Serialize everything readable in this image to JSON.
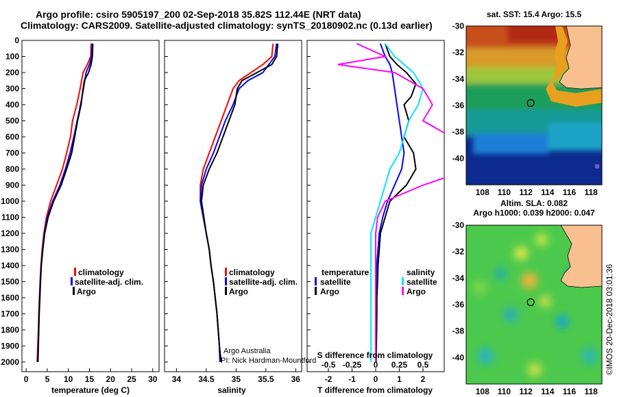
{
  "title_line1": "Argo profile: csiro 5905197_200 02-Sep-2018 35.82S 112.44E (NRT data)",
  "title_line2": "Climatology: CARS2009. Satellite-adjusted climatology: synTS_20180902.nc (0.13d earlier)",
  "colors": {
    "climatology": "#ff0000",
    "satellite": "#0000ff",
    "argo": "#000000",
    "s_satellite": "#00e5ff",
    "s_argo": "#ff00ff",
    "land": "#f7c08e"
  },
  "chart_data": [
    {
      "type": "line",
      "xlabel": "temperature (deg C)",
      "ylabel": "",
      "xlim": [
        -1,
        31.5
      ],
      "ylim": [
        2060,
        0
      ],
      "xticks": [
        "0",
        "5",
        "10",
        "15",
        "20",
        "25",
        "30"
      ],
      "yticks": [
        "0",
        "100",
        "200",
        "300",
        "400",
        "500",
        "600",
        "700",
        "800",
        "900",
        "1000",
        "1100",
        "1200",
        "1300",
        "1400",
        "1500",
        "1600",
        "1700",
        "1800",
        "1900",
        "2000"
      ],
      "legend": [
        "climatology",
        "satellite-adj. clim.",
        "Argo"
      ],
      "series": [
        {
          "name": "climatology",
          "points": [
            [
              15.4,
              20
            ],
            [
              15.3,
              100
            ],
            [
              14.5,
              150
            ],
            [
              13.5,
              200
            ],
            [
              12.8,
              300
            ],
            [
              12,
              400
            ],
            [
              11,
              500
            ],
            [
              10.5,
              600
            ],
            [
              9.6,
              700
            ],
            [
              8.6,
              800
            ],
            [
              7.2,
              900
            ],
            [
              5.8,
              1000
            ],
            [
              4.8,
              1100
            ],
            [
              4.2,
              1200
            ],
            [
              3.8,
              1300
            ],
            [
              3.5,
              1400
            ],
            [
              3.3,
              1500
            ],
            [
              3.15,
              1600
            ],
            [
              3,
              1700
            ],
            [
              2.9,
              1800
            ],
            [
              2.75,
              1900
            ],
            [
              2.6,
              2000
            ]
          ]
        },
        {
          "name": "satellite-adj. clim.",
          "points": [
            [
              15.6,
              20
            ],
            [
              15.5,
              100
            ],
            [
              15,
              150
            ],
            [
              14.2,
              200
            ],
            [
              13.6,
              300
            ],
            [
              12.9,
              400
            ],
            [
              12.1,
              500
            ],
            [
              11.3,
              600
            ],
            [
              10.4,
              700
            ],
            [
              9.3,
              800
            ],
            [
              8,
              900
            ],
            [
              6.3,
              1000
            ],
            [
              5,
              1100
            ],
            [
              4.3,
              1200
            ],
            [
              3.9,
              1300
            ],
            [
              3.55,
              1400
            ],
            [
              3.35,
              1500
            ],
            [
              3.2,
              1600
            ],
            [
              3.05,
              1700
            ],
            [
              2.95,
              1800
            ],
            [
              2.85,
              1900
            ],
            [
              2.7,
              2000
            ]
          ]
        },
        {
          "name": "Argo",
          "points": [
            [
              15.8,
              20
            ],
            [
              15.7,
              100
            ],
            [
              15.4,
              150
            ],
            [
              14.8,
              200
            ],
            [
              13.8,
              250
            ],
            [
              13.5,
              300
            ],
            [
              13,
              400
            ],
            [
              12.2,
              500
            ],
            [
              11.5,
              600
            ],
            [
              10.8,
              700
            ],
            [
              9.6,
              800
            ],
            [
              8.3,
              900
            ],
            [
              6.5,
              1000
            ],
            [
              5.2,
              1100
            ],
            [
              4.4,
              1200
            ],
            [
              3.95,
              1300
            ],
            [
              3.6,
              1400
            ],
            [
              3.4,
              1500
            ],
            [
              3.25,
              1600
            ],
            [
              3.1,
              1700
            ],
            [
              3,
              1800
            ],
            [
              2.9,
              1900
            ],
            [
              2.8,
              2000
            ]
          ]
        }
      ]
    },
    {
      "type": "line",
      "xlabel": "salinity",
      "ylabel": "",
      "xlim": [
        33.8,
        36.1
      ],
      "ylim": [
        2060,
        0
      ],
      "xticks": [
        "34",
        "34.5",
        "35",
        "35.5",
        "36"
      ],
      "legend": [
        "climatology",
        "satellite-adj. clim.",
        "Argo"
      ],
      "annotation": [
        "Argo Australia",
        "PI: Nick Hardman-Mountford"
      ],
      "series": [
        {
          "name": "climatology",
          "points": [
            [
              35.62,
              20
            ],
            [
              35.6,
              100
            ],
            [
              35.45,
              150
            ],
            [
              35.25,
              200
            ],
            [
              35.05,
              250
            ],
            [
              34.95,
              300
            ],
            [
              34.85,
              400
            ],
            [
              34.75,
              500
            ],
            [
              34.65,
              600
            ],
            [
              34.55,
              700
            ],
            [
              34.45,
              800
            ],
            [
              34.4,
              900
            ],
            [
              34.4,
              1000
            ],
            [
              34.45,
              1100
            ],
            [
              34.5,
              1200
            ],
            [
              34.55,
              1300
            ],
            [
              34.58,
              1400
            ],
            [
              34.62,
              1500
            ],
            [
              34.65,
              1600
            ],
            [
              34.68,
              1700
            ],
            [
              34.7,
              1800
            ],
            [
              34.72,
              1900
            ],
            [
              34.73,
              2000
            ]
          ]
        },
        {
          "name": "satellite-adj. clim.",
          "points": [
            [
              35.68,
              20
            ],
            [
              35.65,
              100
            ],
            [
              35.55,
              150
            ],
            [
              35.45,
              200
            ],
            [
              35.2,
              250
            ],
            [
              35.05,
              300
            ],
            [
              34.95,
              400
            ],
            [
              34.82,
              500
            ],
            [
              34.72,
              600
            ],
            [
              34.62,
              700
            ],
            [
              34.5,
              800
            ],
            [
              34.42,
              900
            ],
            [
              34.4,
              1000
            ],
            [
              34.45,
              1100
            ],
            [
              34.5,
              1200
            ],
            [
              34.55,
              1300
            ],
            [
              34.58,
              1400
            ],
            [
              34.62,
              1500
            ],
            [
              34.65,
              1600
            ],
            [
              34.68,
              1700
            ],
            [
              34.7,
              1800
            ],
            [
              34.72,
              1900
            ],
            [
              34.73,
              2000
            ]
          ]
        },
        {
          "name": "Argo",
          "points": [
            [
              35.7,
              20
            ],
            [
              35.68,
              100
            ],
            [
              35.6,
              150
            ],
            [
              35.35,
              200
            ],
            [
              35.1,
              250
            ],
            [
              35.02,
              300
            ],
            [
              34.98,
              400
            ],
            [
              34.88,
              500
            ],
            [
              34.78,
              600
            ],
            [
              34.68,
              700
            ],
            [
              34.55,
              800
            ],
            [
              34.45,
              900
            ],
            [
              34.42,
              1000
            ],
            [
              34.46,
              1100
            ],
            [
              34.5,
              1200
            ],
            [
              34.55,
              1300
            ],
            [
              34.58,
              1400
            ],
            [
              34.62,
              1500
            ],
            [
              34.65,
              1600
            ],
            [
              34.68,
              1700
            ],
            [
              34.7,
              1800
            ],
            [
              34.72,
              1900
            ],
            [
              34.75,
              2000
            ]
          ]
        }
      ]
    },
    {
      "type": "line",
      "xlabel": "T difference from climatology",
      "xlabel_top": "S difference from climatology",
      "ylabel": "",
      "xlim": [
        -2.9,
        2.9
      ],
      "ylim": [
        2060,
        0
      ],
      "xticks": [
        "-2",
        "-1",
        "0",
        "1",
        "2"
      ],
      "xticks_top": [
        "-0.5",
        "-0.25",
        "0",
        "0.25",
        "0.5"
      ],
      "legend": {
        "temperature": [
          "satellite",
          "Argo"
        ],
        "salinity": [
          "satellite",
          "Argo"
        ]
      },
      "series": [
        {
          "name": "temperature satellite",
          "points": [
            [
              0.2,
              20
            ],
            [
              0.4,
              100
            ],
            [
              0.6,
              150
            ],
            [
              0.7,
              200
            ],
            [
              0.8,
              300
            ],
            [
              0.9,
              400
            ],
            [
              1.0,
              500
            ],
            [
              1.1,
              600
            ],
            [
              1.2,
              700
            ],
            [
              1.1,
              800
            ],
            [
              0.8,
              900
            ],
            [
              0.5,
              1000
            ],
            [
              0.3,
              1100
            ],
            [
              0.15,
              1200
            ],
            [
              0.1,
              1300
            ],
            [
              0.05,
              1400
            ],
            [
              0.05,
              1500
            ],
            [
              0.03,
              1600
            ],
            [
              0.02,
              1700
            ],
            [
              0.02,
              1800
            ],
            [
              0.01,
              1900
            ],
            [
              0.01,
              2000
            ]
          ]
        },
        {
          "name": "temperature Argo",
          "points": [
            [
              0.4,
              20
            ],
            [
              0.6,
              100
            ],
            [
              0.9,
              150
            ],
            [
              1.3,
              200
            ],
            [
              1.7,
              270
            ],
            [
              1.5,
              350
            ],
            [
              1.2,
              400
            ],
            [
              1.4,
              500
            ],
            [
              1.2,
              600
            ],
            [
              1.6,
              700
            ],
            [
              1.7,
              800
            ],
            [
              1.3,
              900
            ],
            [
              0.6,
              1000
            ],
            [
              0.4,
              1100
            ],
            [
              0.2,
              1200
            ],
            [
              0.15,
              1300
            ],
            [
              0.1,
              1400
            ],
            [
              0.08,
              1500
            ],
            [
              0.05,
              1600
            ],
            [
              0.05,
              1700
            ],
            [
              0.04,
              1800
            ],
            [
              0.03,
              1900
            ],
            [
              0.02,
              2000
            ]
          ]
        },
        {
          "name": "salinity satellite",
          "points": [
            [
              0.1,
              20
            ],
            [
              0.2,
              100
            ],
            [
              0.4,
              200
            ],
            [
              0.5,
              300
            ],
            [
              0.45,
              400
            ],
            [
              0.35,
              500
            ],
            [
              0.3,
              600
            ],
            [
              0.25,
              700
            ],
            [
              0.15,
              800
            ],
            [
              0.1,
              900
            ],
            [
              0.05,
              1000
            ],
            [
              0.0,
              1100
            ],
            [
              -0.05,
              1200
            ],
            [
              -0.05,
              1300
            ],
            [
              -0.05,
              1400
            ],
            [
              -0.05,
              1500
            ],
            [
              -0.05,
              1600
            ],
            [
              -0.05,
              1700
            ],
            [
              -0.05,
              1800
            ],
            [
              -0.05,
              1900
            ],
            [
              -0.05,
              2000
            ]
          ]
        },
        {
          "name": "salinity Argo",
          "points": [
            [
              -0.2,
              20
            ],
            [
              0.1,
              100
            ],
            [
              -0.4,
              150
            ],
            [
              0.2,
              200
            ],
            [
              0.5,
              300
            ],
            [
              0.6,
              400
            ],
            [
              0.5,
              500
            ],
            [
              0.8,
              600
            ],
            [
              1.0,
              700
            ],
            [
              1.0,
              800
            ],
            [
              0.5,
              900
            ],
            [
              0.1,
              1000
            ],
            [
              0.02,
              1100
            ],
            [
              0.0,
              1200
            ],
            [
              0.0,
              1300
            ],
            [
              0.0,
              1400
            ],
            [
              0.0,
              1500
            ],
            [
              0.0,
              1600
            ],
            [
              0.0,
              1700
            ],
            [
              0.0,
              1800
            ],
            [
              0.0,
              1900
            ],
            [
              0.0,
              2000
            ]
          ]
        }
      ]
    },
    {
      "type": "heatmap",
      "title": "sat. SST: 15.4 Argo: 15.5",
      "xlim": [
        106.5,
        119
      ],
      "ylim": [
        -42,
        -30
      ],
      "xticks": [
        "108",
        "110",
        "112",
        "114",
        "116",
        "118"
      ],
      "yticks": [
        "-30",
        "-32",
        "-34",
        "-36",
        "-38",
        "-40"
      ],
      "marker": [
        112.44,
        -35.82
      ]
    },
    {
      "type": "heatmap",
      "title": "Altim. SLA: 0.082",
      "subtitle": "Argo h1000: 0.039 h2000: 0.047",
      "xlim": [
        106.5,
        119
      ],
      "ylim": [
        -42,
        -30
      ],
      "xticks": [
        "108",
        "110",
        "112",
        "114",
        "116",
        "118"
      ],
      "yticks": [
        "-30",
        "-32",
        "-34",
        "-36",
        "-38",
        "-40"
      ],
      "marker": [
        112.44,
        -35.82
      ]
    }
  ],
  "credit": "©IMOS 20-Dec-2018 03:01:36"
}
